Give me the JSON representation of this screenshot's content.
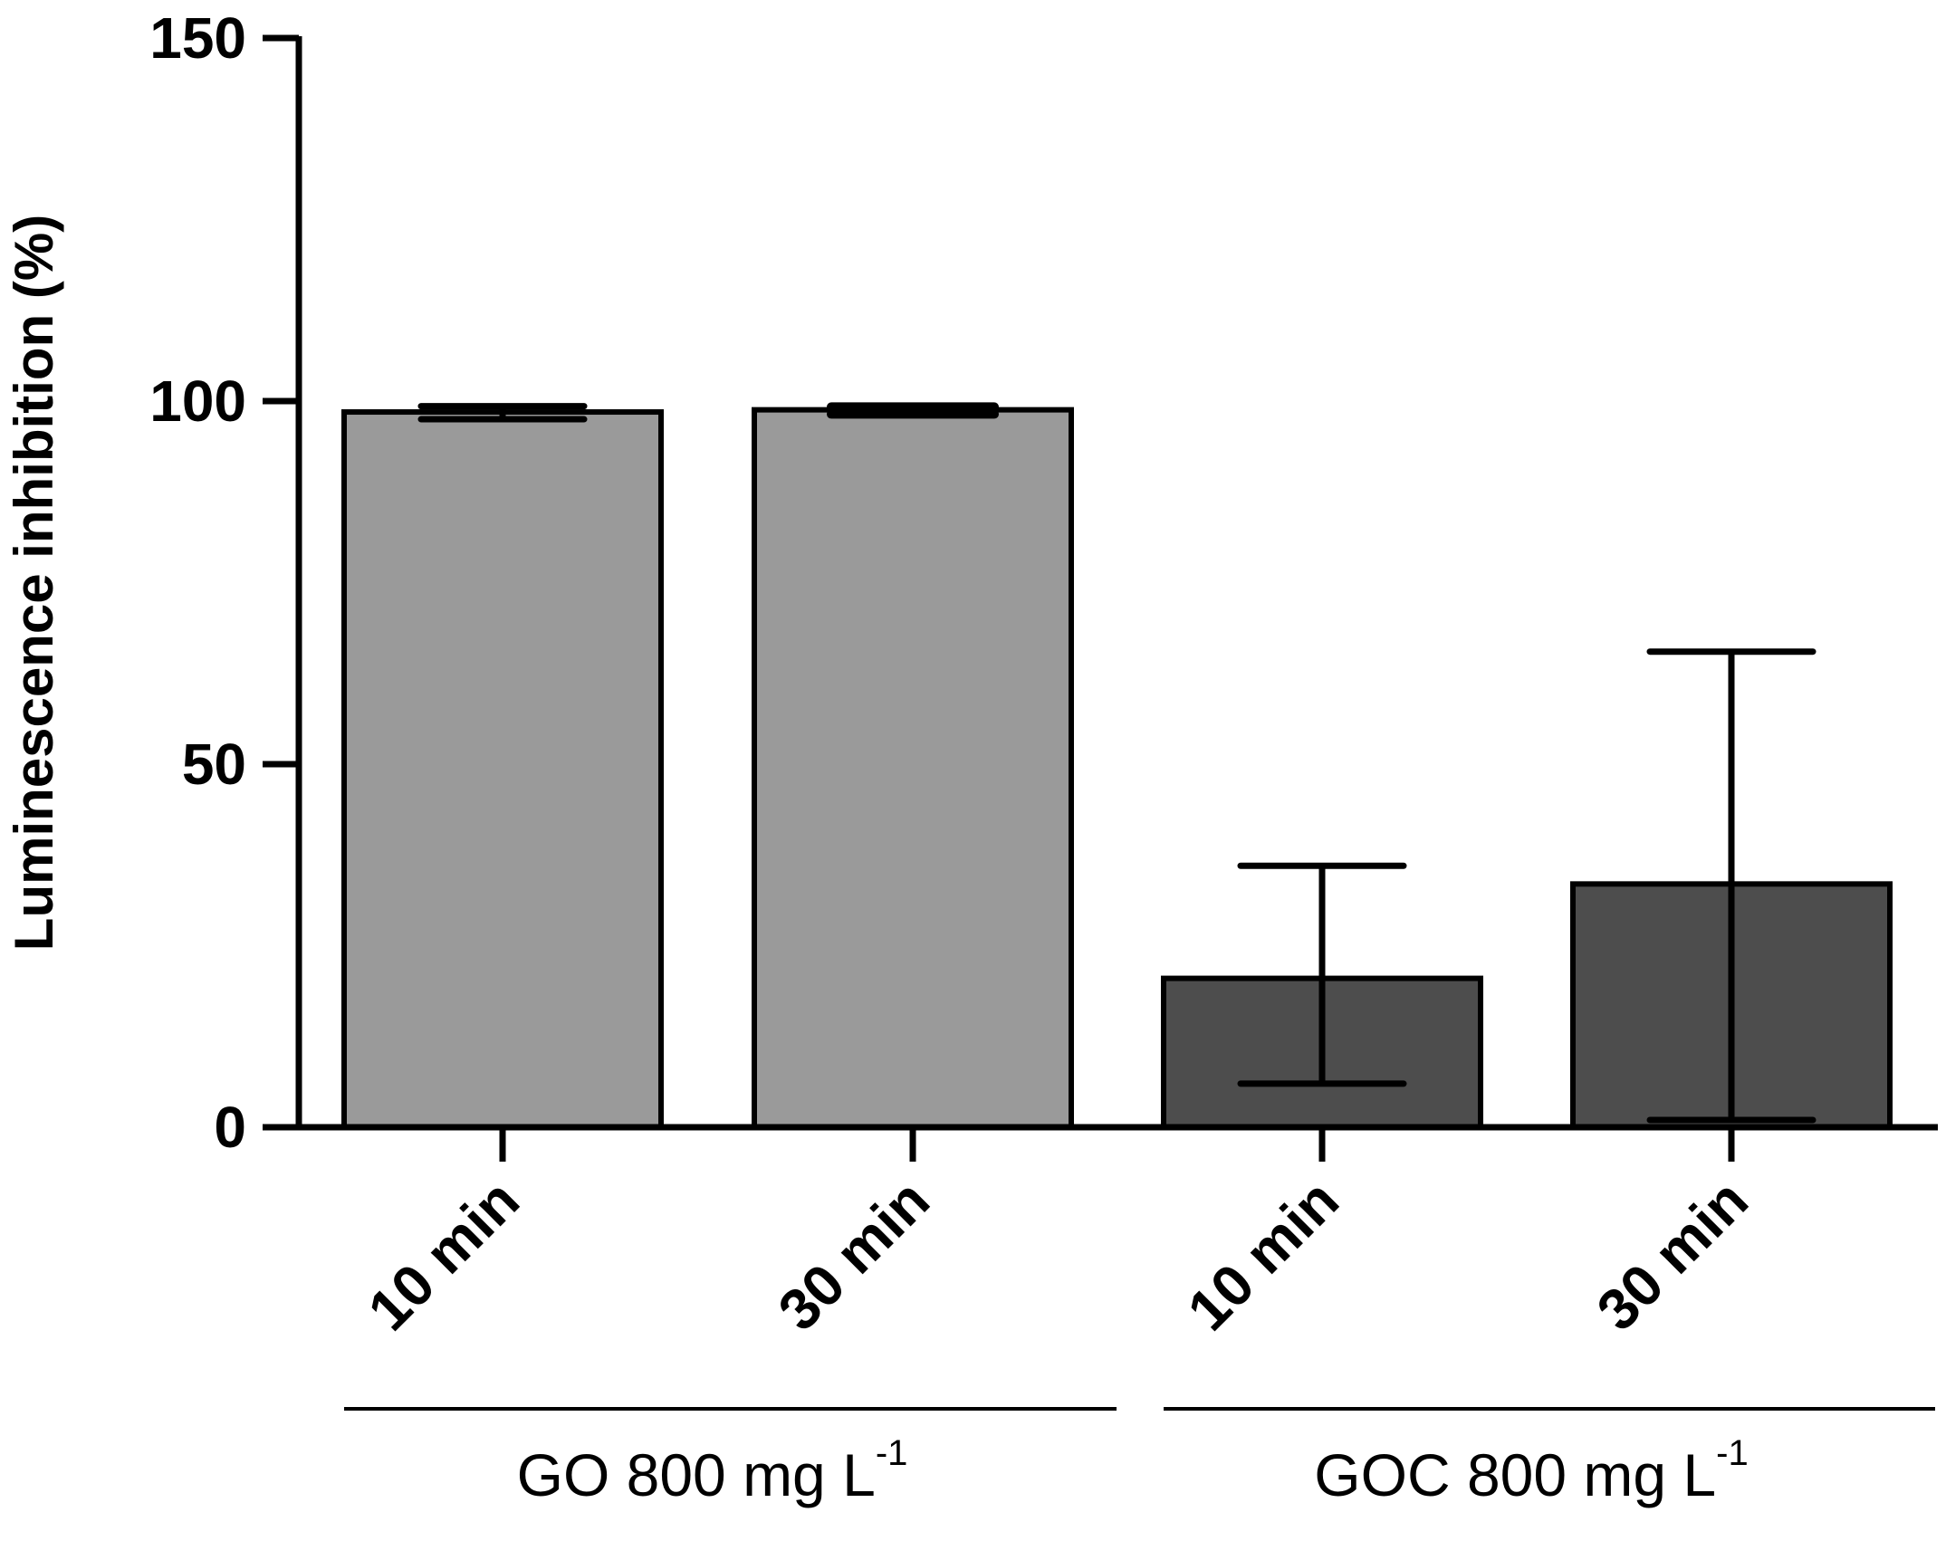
{
  "chart_data": {
    "type": "bar",
    "title": "",
    "xlabel": "",
    "ylabel": "Luminescence inhibition (%)",
    "ylim": [
      0,
      150
    ],
    "yticks": [
      "0",
      "50",
      "100",
      "150"
    ],
    "grid": false,
    "legend": "none",
    "categories": [
      "10 min",
      "30 min",
      "10 min",
      "30 min"
    ],
    "values": [
      98.5,
      98.8,
      20.5,
      33.5
    ],
    "error_lower": [
      97.5,
      98.2,
      6.0,
      1.0
    ],
    "error_upper": [
      99.3,
      99.2,
      36.0,
      65.5
    ],
    "bar_colors": [
      "#9a9a9a",
      "#9a9a9a",
      "#4d4d4d",
      "#4d4d4d"
    ],
    "groups": [
      {
        "label": "GO 800 mg L",
        "superscript": "-1",
        "categories": [
          0,
          1
        ]
      },
      {
        "label": "GOC 800 mg L",
        "superscript": "-1",
        "categories": [
          2,
          3
        ]
      }
    ]
  }
}
